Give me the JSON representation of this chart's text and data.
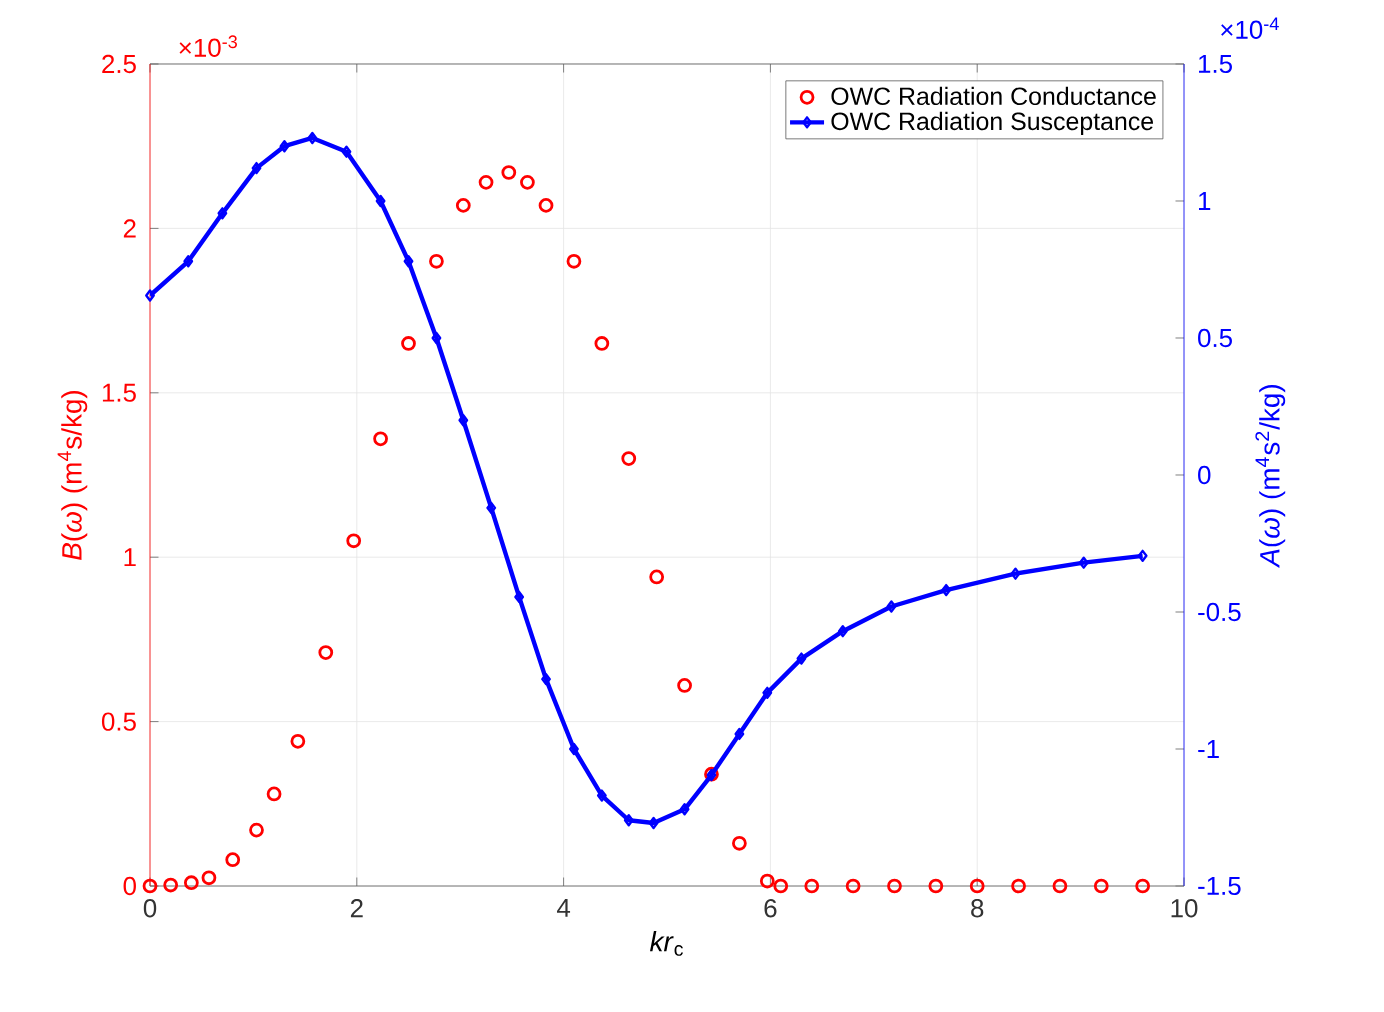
{
  "chart_data": {
    "type": "line",
    "xlabel": "*kr*$_{c}$",
    "ylabel": "*B*(*ω*) (m$^{4}$s/kg)",
    "y2label": "*A*(*ω*) (m$^{4}$s$^{2}$/kg)",
    "annotations": [
      "×10$^{-3}$",
      "×10$^{-4}$"
    ],
    "xlim": [
      0,
      10
    ],
    "xticks": [
      0,
      2,
      4,
      6,
      8,
      10
    ],
    "ylim": [
      0,
      2.5
    ],
    "yticks": [
      0,
      0.5,
      1,
      1.5,
      2,
      2.5
    ],
    "y2lim": [
      -1.5,
      1.5
    ],
    "y2ticks": [
      -1.5,
      -1,
      -0.5,
      0,
      0.5,
      1,
      1.5
    ],
    "grid": true,
    "legend": "top right",
    "series": [
      {
        "name": "OWC Radiation Conductance",
        "type": "scatter",
        "marker": "circle",
        "color": "#ff0000",
        "x": [
          0,
          0.2,
          0.4,
          0.57,
          0.8,
          1.03,
          1.2,
          1.43,
          1.7,
          1.97,
          2.23,
          2.5,
          2.77,
          3.03,
          3.25,
          3.47,
          3.65,
          3.83,
          4.1,
          4.37,
          4.63,
          4.9,
          5.17,
          5.43,
          5.7,
          5.97,
          6.1,
          6.4,
          6.8,
          7.2,
          7.6,
          8.0,
          8.4,
          8.8,
          9.2,
          9.6
        ],
        "values": [
          0,
          0.003,
          0.01,
          0.025,
          0.08,
          0.17,
          0.28,
          0.44,
          0.71,
          1.05,
          1.36,
          1.65,
          1.9,
          2.07,
          2.14,
          2.17,
          2.14,
          2.07,
          1.9,
          1.65,
          1.3,
          0.94,
          0.61,
          0.34,
          0.13,
          0.015,
          0,
          0,
          0,
          0,
          0,
          0,
          0,
          0,
          0,
          0
        ]
      },
      {
        "name": "OWC Radiation Susceptance",
        "marker": "diamond",
        "axis": "y2",
        "color": "#0000ff",
        "x": [
          0,
          0.37,
          0.7,
          1.03,
          1.3,
          1.57,
          1.9,
          2.23,
          2.5,
          2.77,
          3.03,
          3.3,
          3.57,
          3.83,
          4.1,
          4.37,
          4.63,
          4.87,
          5.17,
          5.43,
          5.7,
          5.97,
          6.3,
          6.7,
          7.17,
          7.7,
          8.37,
          9.03,
          9.6
        ],
        "values": [
          0.655,
          0.78,
          0.955,
          1.12,
          1.2,
          1.23,
          1.18,
          1.0,
          0.78,
          0.5,
          0.2,
          -0.12,
          -0.445,
          -0.745,
          -1.0,
          -1.17,
          -1.26,
          -1.27,
          -1.22,
          -1.095,
          -0.945,
          -0.795,
          -0.67,
          -0.57,
          -0.48,
          -0.42,
          -0.36,
          -0.32,
          -0.295
        ]
      }
    ]
  }
}
